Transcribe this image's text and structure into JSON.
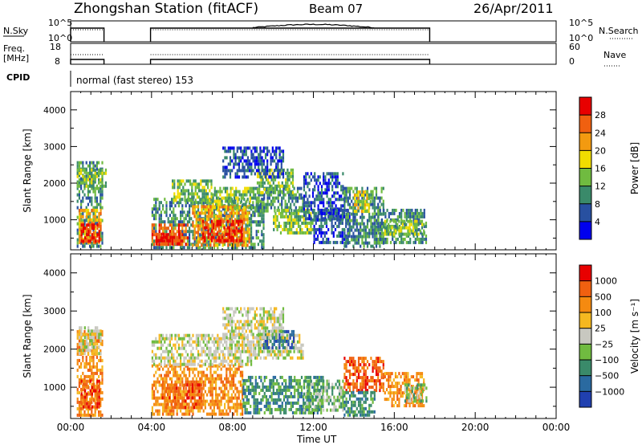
{
  "header": {
    "title": "Zhongshan Station (fitACF)",
    "beam": "Beam 07",
    "date": "26/Apr/2011"
  },
  "strip": {
    "nsky_label": "N.Sky",
    "nsky_ticks": [
      "10^5",
      "10^0"
    ],
    "nsearch_label": "N.Search",
    "nsearch_ticks": [
      "10^5",
      "10^0"
    ],
    "freq_label_1": "Freq.",
    "freq_label_2": "[MHz]",
    "freq_ticks": [
      "18",
      "8"
    ],
    "nave_label": "Nave",
    "nave_ticks": [
      "60",
      "0"
    ],
    "cpid_label": "CPID",
    "cpid_text": "normal (fast stereo) 153"
  },
  "chart_data": [
    {
      "type": "heatmap",
      "name": "power",
      "ylabel": "Slant Range [km]",
      "yticks": [
        "1000",
        "2000",
        "3000",
        "4000"
      ],
      "ylim": [
        180,
        4500
      ],
      "colorbar_label": "Power [dB]",
      "colorbar_ticks": [
        "4",
        "8",
        "12",
        "16",
        "20",
        "24",
        "28"
      ],
      "colors": [
        "#0000ee",
        "#2850a0",
        "#3a8a6a",
        "#70bb40",
        "#f0dc00",
        "#f39a10",
        "#f06010",
        "#e80000"
      ],
      "blocks": [
        {
          "x0": 0.3,
          "x1": 1.6,
          "y0": 300,
          "y1": 2600,
          "level": 2
        },
        {
          "x0": 0.4,
          "x1": 1.5,
          "y0": 400,
          "y1": 1300,
          "level": 5
        },
        {
          "x0": 0.5,
          "x1": 1.4,
          "y0": 450,
          "y1": 900,
          "level": 7
        },
        {
          "x0": 0.3,
          "x1": 1.7,
          "y0": 1900,
          "y1": 2400,
          "level": 3
        },
        {
          "x0": 4.0,
          "x1": 9.5,
          "y0": 250,
          "y1": 1600,
          "level": 2
        },
        {
          "x0": 4.0,
          "x1": 5.8,
          "y0": 300,
          "y1": 900,
          "level": 6
        },
        {
          "x0": 4.2,
          "x1": 5.5,
          "y0": 350,
          "y1": 650,
          "level": 7
        },
        {
          "x0": 6.0,
          "x1": 8.8,
          "y0": 300,
          "y1": 1400,
          "level": 5
        },
        {
          "x0": 6.5,
          "x1": 8.5,
          "y0": 450,
          "y1": 1000,
          "level": 7
        },
        {
          "x0": 5.0,
          "x1": 7.0,
          "y0": 1500,
          "y1": 2100,
          "level": 3
        },
        {
          "x0": 7.0,
          "x1": 9.0,
          "y0": 1300,
          "y1": 1900,
          "level": 3
        },
        {
          "x0": 9.0,
          "x1": 11.5,
          "y0": 1200,
          "y1": 1900,
          "level": 2
        },
        {
          "x0": 9.2,
          "x1": 11.0,
          "y0": 1700,
          "y1": 2400,
          "level": 3
        },
        {
          "x0": 10.0,
          "x1": 12.0,
          "y0": 600,
          "y1": 1300,
          "level": 3
        },
        {
          "x0": 11.5,
          "x1": 13.5,
          "y0": 1000,
          "y1": 2300,
          "level": 1
        },
        {
          "x0": 12.0,
          "x1": 13.8,
          "y0": 400,
          "y1": 1300,
          "level": 1
        },
        {
          "x0": 13.5,
          "x1": 15.5,
          "y0": 300,
          "y1": 1900,
          "level": 2
        },
        {
          "x0": 14.0,
          "x1": 14.8,
          "y0": 1200,
          "y1": 1800,
          "level": 4
        },
        {
          "x0": 15.0,
          "x1": 17.6,
          "y0": 400,
          "y1": 1300,
          "level": 2
        },
        {
          "x0": 15.5,
          "x1": 17.5,
          "y0": 600,
          "y1": 1000,
          "level": 3
        },
        {
          "x0": 7.5,
          "x1": 10.5,
          "y0": 2200,
          "y1": 3000,
          "level": 1
        }
      ]
    },
    {
      "type": "heatmap",
      "name": "velocity",
      "ylabel": "Slant Range [km]",
      "yticks": [
        "1000",
        "2000",
        "3000",
        "4000"
      ],
      "ylim": [
        180,
        4500
      ],
      "colorbar_label": "Velocity [m s⁻¹]",
      "colorbar_ticks": [
        "1000",
        "500",
        "100",
        "25",
        "−25",
        "−100",
        "−500",
        "−1000"
      ],
      "colors": [
        "#2040b0",
        "#2a6aa0",
        "#3a8a6a",
        "#70bb40",
        "#c8c8c0",
        "#f5b820",
        "#f58a10",
        "#f06010",
        "#e80000"
      ],
      "blocks": [
        {
          "x0": 0.3,
          "x1": 1.6,
          "y0": 300,
          "y1": 2500,
          "level": 6
        },
        {
          "x0": 0.4,
          "x1": 1.5,
          "y0": 1900,
          "y1": 2600,
          "level": 4
        },
        {
          "x0": 0.5,
          "x1": 1.4,
          "y0": 500,
          "y1": 1200,
          "level": 7
        },
        {
          "x0": 4.0,
          "x1": 8.5,
          "y0": 300,
          "y1": 1600,
          "level": 6
        },
        {
          "x0": 4.5,
          "x1": 6.5,
          "y0": 500,
          "y1": 1100,
          "level": 7
        },
        {
          "x0": 4.0,
          "x1": 9.0,
          "y0": 1600,
          "y1": 2400,
          "level": 4
        },
        {
          "x0": 8.5,
          "x1": 12.5,
          "y0": 300,
          "y1": 1300,
          "level": 2
        },
        {
          "x0": 9.0,
          "x1": 11.5,
          "y0": 1800,
          "y1": 2400,
          "level": 4
        },
        {
          "x0": 9.5,
          "x1": 11.0,
          "y0": 2000,
          "y1": 2500,
          "level": 1
        },
        {
          "x0": 11.5,
          "x1": 13.5,
          "y0": 400,
          "y1": 1200,
          "level": 3
        },
        {
          "x0": 13.5,
          "x1": 15.5,
          "y0": 900,
          "y1": 1800,
          "level": 7
        },
        {
          "x0": 13.5,
          "x1": 15.0,
          "y0": 300,
          "y1": 900,
          "level": 2
        },
        {
          "x0": 15.5,
          "x1": 17.5,
          "y0": 500,
          "y1": 1400,
          "level": 6
        },
        {
          "x0": 16.5,
          "x1": 17.6,
          "y0": 600,
          "y1": 1100,
          "level": 3
        },
        {
          "x0": 7.5,
          "x1": 10.5,
          "y0": 2300,
          "y1": 3100,
          "level": 4
        }
      ]
    }
  ],
  "xaxis": {
    "label": "Time UT",
    "ticks": [
      "00:00",
      "04:00",
      "08:00",
      "12:00",
      "16:00",
      "20:00",
      "00:00"
    ]
  },
  "data_gap_hours": [
    1.65,
    3.95
  ],
  "data_end_hour": 17.75
}
